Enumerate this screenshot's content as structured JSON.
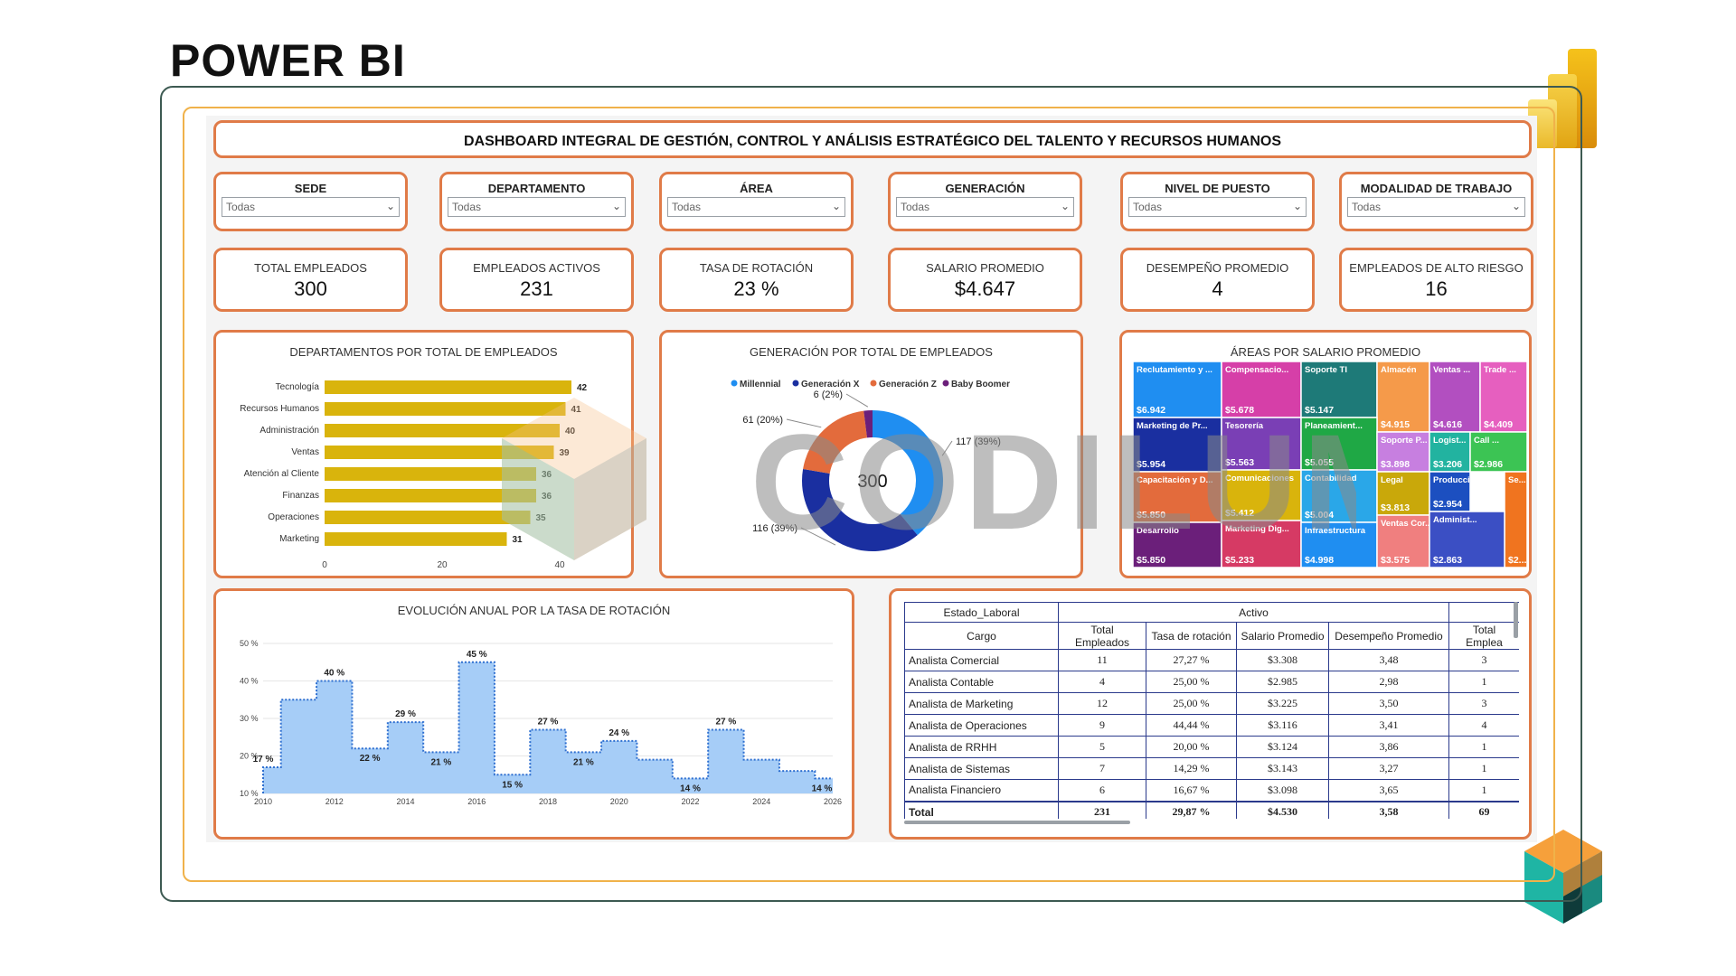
{
  "page_title": "POWER BI",
  "dashboard_title": "DASHBOARD INTEGRAL DE GESTIÓN, CONTROL Y ANÁLISIS ESTRATÉGICO DEL TALENTO Y RECURSOS HUMANOS",
  "watermark": "CODILUM",
  "filters": [
    {
      "label": "SEDE",
      "value": "Todas"
    },
    {
      "label": "DEPARTAMENTO",
      "value": "Todas"
    },
    {
      "label": "ÁREA",
      "value": "Todas"
    },
    {
      "label": "GENERACIÓN",
      "value": "Todas"
    },
    {
      "label": "NIVEL DE PUESTO",
      "value": "Todas"
    },
    {
      "label": "MODALIDAD DE TRABAJO",
      "value": "Todas"
    }
  ],
  "kpis": [
    {
      "label": "TOTAL EMPLEADOS",
      "value": "300"
    },
    {
      "label": "EMPLEADOS ACTIVOS",
      "value": "231"
    },
    {
      "label": "TASA DE ROTACIÓN",
      "value": "23 %"
    },
    {
      "label": "SALARIO PROMEDIO",
      "value": "$4.647"
    },
    {
      "label": "DESEMPEÑO PROMEDIO",
      "value": "4"
    },
    {
      "label": "EMPLEADOS DE ALTO RIESGO",
      "value": "16"
    }
  ],
  "chart_data": [
    {
      "type": "bar",
      "orientation": "horizontal",
      "title": "DEPARTAMENTOS POR TOTAL DE EMPLEADOS",
      "categories": [
        "Tecnología",
        "Recursos Humanos",
        "Administración",
        "Ventas",
        "Atención al Cliente",
        "Finanzas",
        "Operaciones",
        "Marketing"
      ],
      "values": [
        42,
        41,
        40,
        39,
        36,
        36,
        35,
        31
      ],
      "xlim": [
        0,
        40
      ],
      "xticks": [
        "0",
        "20",
        "40"
      ],
      "color": "#d9b40c"
    },
    {
      "type": "pie",
      "variant": "donut",
      "title": "GENERACIÓN POR TOTAL DE EMPLEADOS",
      "center_label": "300",
      "legend_position": "top",
      "slices": [
        {
          "name": "Millennial",
          "value": 117,
          "label": "117 (39%)",
          "color": "#1f8ef1"
        },
        {
          "name": "Generación X",
          "value": 116,
          "label": "116 (39%)",
          "color": "#1a2fa0"
        },
        {
          "name": "Generación Z",
          "value": 61,
          "label": "61 (20%)",
          "color": "#e36b3c"
        },
        {
          "name": "Baby Boomer",
          "value": 6,
          "label": "6 (2%)",
          "color": "#6b1f7a"
        }
      ]
    },
    {
      "type": "heatmap",
      "variant": "treemap",
      "title": "ÁREAS POR SALARIO PROMEDIO",
      "cells": [
        {
          "name": "Reclutamiento y ...",
          "value": "$6.942",
          "color": "#1f8ef1"
        },
        {
          "name": "Compensacio...",
          "value": "$5.678",
          "color": "#d63fa8"
        },
        {
          "name": "Soporte TI",
          "value": "$5.147",
          "color": "#1e7a78"
        },
        {
          "name": "Almacén",
          "value": "$4.915",
          "color": "#f59a4a"
        },
        {
          "name": "Ventas ...",
          "value": "$4.616",
          "color": "#b24fc0"
        },
        {
          "name": "Trade ...",
          "value": "$4.409",
          "color": "#e65fbf"
        },
        {
          "name": "Marketing de Pr...",
          "value": "$5.954",
          "color": "#1a2fa0"
        },
        {
          "name": "Tesorería",
          "value": "$5.563",
          "color": "#7a3fb5"
        },
        {
          "name": "Planeamient...",
          "value": "$5.055",
          "color": "#1fa845"
        },
        {
          "name": "Soporte P...",
          "value": "$3.898",
          "color": "#c77fe0"
        },
        {
          "name": "Logist...",
          "value": "$3.206",
          "color": "#22b3a0"
        },
        {
          "name": "Call ...",
          "value": "$2.986",
          "color": "#3cc454"
        },
        {
          "name": "Capacitación y D...",
          "value": "$5.850",
          "color": "#e36b3c"
        },
        {
          "name": "Comunicaciones",
          "value": "$5.412",
          "color": "#d9b40c"
        },
        {
          "name": "Contabilidad",
          "value": "$5.004",
          "color": "#2aa7e8"
        },
        {
          "name": "Legal",
          "value": "$3.813",
          "color": "#c9a80a"
        },
        {
          "name": "Producci...",
          "value": "$2.954",
          "color": "#1c4fc0"
        },
        {
          "name": "Se...",
          "value": "$2...",
          "color": "#f0741f"
        },
        {
          "name": "Desarrollo",
          "value": "$5.850",
          "color": "#6b1f7a"
        },
        {
          "name": "Marketing Dig...",
          "value": "$5.233",
          "color": "#d63a64"
        },
        {
          "name": "Infraestructura",
          "value": "$4.998",
          "color": "#1f8ef1"
        },
        {
          "name": "Ventas Cor...",
          "value": "$3.575",
          "color": "#f07f7f"
        },
        {
          "name": "Administ...",
          "value": "$2.863",
          "color": "#3b4fc4"
        }
      ]
    },
    {
      "type": "area",
      "variant": "step",
      "title": "EVOLUCIÓN ANUAL POR LA TASA DE ROTACIÓN",
      "x": [
        2010,
        2011,
        2012,
        2013,
        2014,
        2015,
        2016,
        2017,
        2018,
        2019,
        2020,
        2021,
        2022,
        2023,
        2024,
        2025,
        2026
      ],
      "values": [
        17,
        35,
        40,
        22,
        29,
        21,
        45,
        15,
        27,
        21,
        24,
        19,
        14,
        27,
        19,
        16,
        14
      ],
      "data_labels": [
        {
          "x": 2010,
          "text": "17 %"
        },
        {
          "x": 2012,
          "text": "40 %"
        },
        {
          "x": 2013,
          "text": "22 %"
        },
        {
          "x": 2014,
          "text": "29 %"
        },
        {
          "x": 2015,
          "text": "21 %"
        },
        {
          "x": 2016,
          "text": "45 %"
        },
        {
          "x": 2017,
          "text": "15 %"
        },
        {
          "x": 2018,
          "text": "27 %"
        },
        {
          "x": 2019,
          "text": "21 %"
        },
        {
          "x": 2020,
          "text": "24 %"
        },
        {
          "x": 2022,
          "text": "14 %"
        },
        {
          "x": 2023,
          "text": "27 %"
        },
        {
          "x": 2026,
          "text": "14 %"
        }
      ],
      "xticks": [
        "2010",
        "2012",
        "2014",
        "2016",
        "2018",
        "2020",
        "2022",
        "2024",
        "2026"
      ],
      "yticks": [
        "10 %",
        "20 %",
        "30 %",
        "40 %",
        "50 %"
      ],
      "ylim": [
        10,
        50
      ],
      "xlim": [
        2010,
        2026
      ],
      "fill_color": "#a6cdf7",
      "line_color": "#2e6fd0"
    },
    {
      "type": "table",
      "group_header": [
        "Estado_Laboral",
        "Activo"
      ],
      "columns": [
        "Cargo",
        "Total Empleados",
        "Tasa de rotación",
        "Salario Promedio",
        "Desempeño Promedio",
        "Total Emplea"
      ],
      "rows": [
        [
          "Analista Comercial",
          "11",
          "27,27 %",
          "$3.308",
          "3,48",
          "3"
        ],
        [
          "Analista Contable",
          "4",
          "25,00 %",
          "$2.985",
          "2,98",
          "1"
        ],
        [
          "Analista de Marketing",
          "12",
          "25,00 %",
          "$3.225",
          "3,50",
          "3"
        ],
        [
          "Analista de Operaciones",
          "9",
          "44,44 %",
          "$3.116",
          "3,41",
          "4"
        ],
        [
          "Analista de RRHH",
          "5",
          "20,00 %",
          "$3.124",
          "3,86",
          "1"
        ],
        [
          "Analista de Sistemas",
          "7",
          "14,29 %",
          "$3.143",
          "3,27",
          "1"
        ],
        [
          "Analista Financiero",
          "6",
          "16,67 %",
          "$3.098",
          "3,65",
          "1"
        ]
      ],
      "total": [
        "Total",
        "231",
        "29,87 %",
        "$4.530",
        "3,58",
        "69"
      ]
    }
  ]
}
